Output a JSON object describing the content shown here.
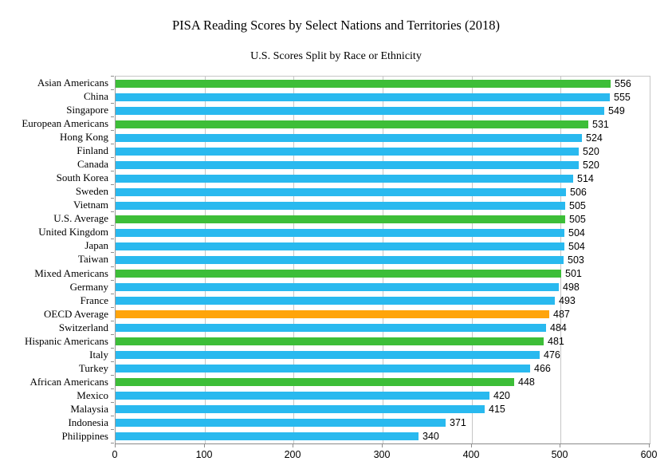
{
  "title": "PISA Reading Scores by Select Nations and Territories (2018)",
  "subtitle": "U.S. Scores Split by Race or Ethnicity",
  "colors": {
    "country": "#29b9ef",
    "us_group": "#3dbe38",
    "oecd": "#ffa40b"
  },
  "chart_data": {
    "type": "bar",
    "orientation": "horizontal",
    "title": "PISA Reading Scores by Select Nations and Territories (2018)",
    "subtitle": "U.S. Scores Split by Race or Ethnicity",
    "xlabel": "",
    "ylabel": "",
    "xlim": [
      0,
      600
    ],
    "xticks": [
      0,
      100,
      200,
      300,
      400,
      500,
      600
    ],
    "grid": true,
    "legend": "none",
    "categories": [
      "Asian Americans",
      "China",
      "Singapore",
      "European Americans",
      "Hong Kong",
      "Finland",
      "Canada",
      "South Korea",
      "Sweden",
      "Vietnam",
      "U.S. Average",
      "United Kingdom",
      "Japan",
      "Taiwan",
      "Mixed Americans",
      "Germany",
      "France",
      "OECD Average",
      "Switzerland",
      "Hispanic Americans",
      "Italy",
      "Turkey",
      "African Americans",
      "Mexico",
      "Malaysia",
      "Indonesia",
      "Philippines"
    ],
    "values": [
      556,
      555,
      549,
      531,
      524,
      520,
      520,
      514,
      506,
      505,
      505,
      504,
      504,
      503,
      501,
      498,
      493,
      487,
      484,
      481,
      476,
      466,
      448,
      420,
      415,
      371,
      340
    ],
    "groups": [
      "us_group",
      "country",
      "country",
      "us_group",
      "country",
      "country",
      "country",
      "country",
      "country",
      "country",
      "us_group",
      "country",
      "country",
      "country",
      "us_group",
      "country",
      "country",
      "oecd",
      "country",
      "us_group",
      "country",
      "country",
      "us_group",
      "country",
      "country",
      "country",
      "country"
    ]
  }
}
